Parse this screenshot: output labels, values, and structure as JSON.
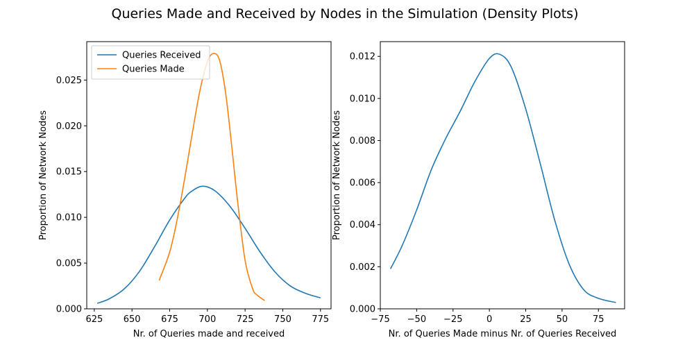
{
  "chart_data": [
    {
      "type": "line",
      "title": "Queries Made and Received by Nodes in the Simulation (Density Plots)",
      "xlabel": "Nr. of Queries made and received",
      "ylabel": "Proportion of Network Nodes",
      "xlim": [
        620,
        782
      ],
      "ylim": [
        0,
        0.0292
      ],
      "xticks": [
        625,
        650,
        675,
        700,
        725,
        750,
        775
      ],
      "xtick_labels": [
        "625",
        "650",
        "675",
        "700",
        "725",
        "750",
        "775"
      ],
      "yticks": [
        0,
        0.005,
        0.01,
        0.015,
        0.02,
        0.025
      ],
      "ytick_labels": [
        "0.000",
        "0.005",
        "0.010",
        "0.015",
        "0.020",
        "0.025"
      ],
      "grid": false,
      "legend": "top-left",
      "series": [
        {
          "name": "Queries Received",
          "color": "#1f77b4",
          "x": [
            627,
            635,
            645,
            655,
            665,
            675,
            685,
            690,
            697,
            705,
            715,
            725,
            735,
            745,
            755,
            765,
            775
          ],
          "y": [
            0.0006,
            0.0011,
            0.0022,
            0.0041,
            0.0068,
            0.0097,
            0.0121,
            0.0129,
            0.0134,
            0.0129,
            0.0112,
            0.0088,
            0.0062,
            0.004,
            0.0025,
            0.0017,
            0.0012
          ]
        },
        {
          "name": "Queries Made",
          "color": "#ff7f0e",
          "x": [
            668,
            675,
            680,
            685,
            690,
            695,
            700,
            704,
            708,
            712,
            716,
            720,
            725,
            730,
            733,
            738
          ],
          "y": [
            0.0031,
            0.0062,
            0.0098,
            0.0143,
            0.0192,
            0.0238,
            0.027,
            0.0279,
            0.0272,
            0.0237,
            0.018,
            0.0118,
            0.0053,
            0.0022,
            0.0015,
            0.0009
          ]
        }
      ]
    },
    {
      "type": "line",
      "title": "",
      "xlabel": "Nr. of Queries Made minus Nr. of Queries Received",
      "ylabel": "Proportion of Network Nodes",
      "xlim": [
        -75,
        93
      ],
      "ylim": [
        0,
        0.0127
      ],
      "xticks": [
        -75,
        -50,
        -25,
        0,
        25,
        50,
        75
      ],
      "xtick_labels": [
        "−75",
        "−50",
        "−25",
        "0",
        "25",
        "50",
        "75"
      ],
      "yticks": [
        0,
        0.002,
        0.004,
        0.006,
        0.008,
        0.01,
        0.012
      ],
      "ytick_labels": [
        "0.000",
        "0.002",
        "0.004",
        "0.006",
        "0.008",
        "0.010",
        "0.012"
      ],
      "grid": false,
      "legend": "none",
      "series": [
        {
          "color": "#1f77b4",
          "x": [
            -68,
            -60,
            -50,
            -40,
            -30,
            -20,
            -10,
            0,
            7,
            15,
            25,
            35,
            45,
            55,
            65,
            75,
            87
          ],
          "y": [
            0.0019,
            0.003,
            0.0047,
            0.0066,
            0.0081,
            0.0094,
            0.0108,
            0.0119,
            0.0121,
            0.0115,
            0.0095,
            0.0069,
            0.0042,
            0.0021,
            0.0009,
            0.0005,
            0.0003
          ]
        }
      ]
    }
  ]
}
